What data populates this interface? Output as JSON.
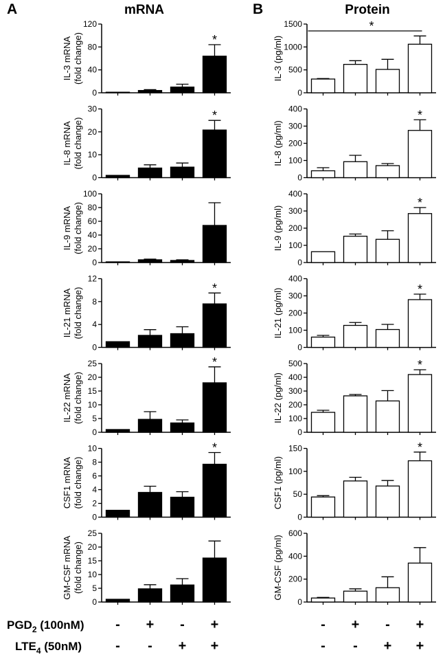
{
  "panel_letters": {
    "a": "A",
    "b": "B"
  },
  "column_titles": {
    "mrna": "mRNA",
    "protein": "Protein"
  },
  "conditions": {
    "pgd2": {
      "name": "PGD",
      "subscript": "2",
      "dose": " (100nM)",
      "signs": [
        "-",
        "+",
        "-",
        "+"
      ]
    },
    "lte4": {
      "name": "LTE",
      "subscript": "4",
      "dose": " (50nM)",
      "signs": [
        "-",
        "-",
        "+",
        "+"
      ]
    }
  },
  "colors": {
    "mrna_bar": "#000000",
    "protein_bar": "#ffffff",
    "axis": "#000000"
  },
  "chart_data": [
    {
      "type": "bar",
      "column": "mRNA",
      "ylabel": [
        "IL-3 mRNA",
        "(fold change)"
      ],
      "ylim": [
        0,
        120
      ],
      "yticks": [
        0,
        40,
        80,
        120
      ],
      "categories": [
        "1",
        "2",
        "3",
        "4"
      ],
      "values": [
        1,
        4,
        10,
        64
      ],
      "errors": [
        0,
        1.5,
        5,
        20
      ],
      "significance": [
        {
          "label": "*",
          "bar": 3
        }
      ]
    },
    {
      "type": "bar",
      "column": "mRNA",
      "ylabel": [
        "IL-8 mRNA",
        "(fold change)"
      ],
      "ylim": [
        0,
        30
      ],
      "yticks": [
        0,
        10,
        20,
        30
      ],
      "categories": [
        "1",
        "2",
        "3",
        "4"
      ],
      "values": [
        1,
        4.2,
        4.6,
        20.8
      ],
      "errors": [
        0,
        1.4,
        1.8,
        4.2
      ],
      "significance": [
        {
          "label": "*",
          "bar": 3
        }
      ]
    },
    {
      "type": "bar",
      "column": "mRNA",
      "ylabel": [
        "IL-9 mRNA",
        "(fold change)"
      ],
      "ylim": [
        0,
        100
      ],
      "yticks": [
        0,
        20,
        40,
        60,
        80,
        100
      ],
      "categories": [
        "1",
        "2",
        "3",
        "4"
      ],
      "values": [
        1,
        4,
        3,
        54
      ],
      "errors": [
        0,
        1,
        1,
        33
      ],
      "significance": []
    },
    {
      "type": "bar",
      "column": "mRNA",
      "ylabel": [
        "IL-21 mRNA",
        "(fold change)"
      ],
      "ylim": [
        0,
        12
      ],
      "yticks": [
        0,
        4,
        8,
        12
      ],
      "categories": [
        "1",
        "2",
        "3",
        "4"
      ],
      "values": [
        1,
        2.1,
        2.4,
        7.6
      ],
      "errors": [
        0,
        1,
        1.2,
        1.9
      ],
      "significance": [
        {
          "label": "*",
          "bar": 3
        }
      ]
    },
    {
      "type": "bar",
      "column": "mRNA",
      "ylabel": [
        "IL-22 mRNA",
        "(fold change)"
      ],
      "ylim": [
        0,
        25
      ],
      "yticks": [
        0,
        5,
        10,
        15,
        20,
        25
      ],
      "categories": [
        "1",
        "2",
        "3",
        "4"
      ],
      "values": [
        1,
        4.7,
        3.4,
        18
      ],
      "errors": [
        0,
        2.8,
        1.1,
        5.8
      ],
      "significance": [
        {
          "label": "*",
          "bar": 3
        }
      ]
    },
    {
      "type": "bar",
      "column": "mRNA",
      "ylabel": [
        "CSF1 mRNA",
        "(fold change)"
      ],
      "ylim": [
        0,
        10
      ],
      "yticks": [
        0,
        2,
        4,
        6,
        8,
        10
      ],
      "categories": [
        "1",
        "2",
        "3",
        "4"
      ],
      "values": [
        1,
        3.6,
        2.9,
        7.7
      ],
      "errors": [
        0,
        0.9,
        0.8,
        1.7
      ],
      "significance": [
        {
          "label": "*",
          "bar": 3
        }
      ]
    },
    {
      "type": "bar",
      "column": "mRNA",
      "ylabel": [
        "GM-CSF mRNA",
        "(fold change)"
      ],
      "ylim": [
        0,
        25
      ],
      "yticks": [
        0,
        5,
        10,
        15,
        20,
        25
      ],
      "categories": [
        "1",
        "2",
        "3",
        "4"
      ],
      "values": [
        1,
        4.8,
        6.2,
        16
      ],
      "errors": [
        0,
        1.5,
        2.3,
        6.2
      ],
      "significance": []
    },
    {
      "type": "bar",
      "column": "Protein",
      "ylabel": [
        "IL-3 (pg/ml)"
      ],
      "ylim": [
        0,
        1500
      ],
      "yticks": [
        0,
        500,
        1000,
        1500
      ],
      "categories": [
        "1",
        "2",
        "3",
        "4"
      ],
      "values": [
        300,
        620,
        510,
        1060
      ],
      "errors": [
        10,
        80,
        220,
        180
      ],
      "significance": [
        {
          "label": "*",
          "from": 0,
          "to": 3,
          "y": 1350
        }
      ]
    },
    {
      "type": "bar",
      "column": "Protein",
      "ylabel": [
        "IL-8 (pg/ml)"
      ],
      "ylim": [
        0,
        400
      ],
      "yticks": [
        0,
        100,
        200,
        300,
        400
      ],
      "categories": [
        "1",
        "2",
        "3",
        "4"
      ],
      "values": [
        40,
        93,
        70,
        275
      ],
      "errors": [
        18,
        37,
        12,
        62
      ],
      "significance": [
        {
          "label": "*",
          "bar": 3
        }
      ]
    },
    {
      "type": "bar",
      "column": "Protein",
      "ylabel": [
        "IL-9 (pg/ml)"
      ],
      "ylim": [
        0,
        400
      ],
      "yticks": [
        0,
        100,
        200,
        300,
        400
      ],
      "categories": [
        "1",
        "2",
        "3",
        "4"
      ],
      "values": [
        63,
        153,
        135,
        285
      ],
      "errors": [
        0,
        13,
        50,
        35
      ],
      "significance": [
        {
          "label": "*",
          "bar": 3
        }
      ]
    },
    {
      "type": "bar",
      "column": "Protein",
      "ylabel": [
        "IL-21 (pg/ml)"
      ],
      "ylim": [
        0,
        400
      ],
      "yticks": [
        0,
        100,
        200,
        300,
        400
      ],
      "categories": [
        "1",
        "2",
        "3",
        "4"
      ],
      "values": [
        60,
        128,
        104,
        278
      ],
      "errors": [
        10,
        17,
        30,
        32
      ],
      "significance": [
        {
          "label": "*",
          "bar": 3
        }
      ]
    },
    {
      "type": "bar",
      "column": "Protein",
      "ylabel": [
        "IL-22 (pg/ml)"
      ],
      "ylim": [
        0,
        500
      ],
      "yticks": [
        0,
        100,
        200,
        300,
        400,
        500
      ],
      "categories": [
        "1",
        "2",
        "3",
        "4"
      ],
      "values": [
        145,
        265,
        228,
        420
      ],
      "errors": [
        15,
        10,
        75,
        35
      ],
      "significance": [
        {
          "label": "*",
          "bar": 3
        }
      ]
    },
    {
      "type": "bar",
      "column": "Protein",
      "ylabel": [
        "CSF1 (pg/ml)"
      ],
      "ylim": [
        0,
        150
      ],
      "yticks": [
        0,
        50,
        100,
        150
      ],
      "categories": [
        "1",
        "2",
        "3",
        "4"
      ],
      "values": [
        44,
        79,
        68,
        123
      ],
      "errors": [
        3,
        8,
        12,
        19
      ],
      "significance": [
        {
          "label": "*",
          "bar": 3
        }
      ]
    },
    {
      "type": "bar",
      "column": "Protein",
      "ylabel": [
        "GM-CSF (pg/ml)"
      ],
      "ylim": [
        0,
        600
      ],
      "yticks": [
        0,
        200,
        400,
        600
      ],
      "categories": [
        "1",
        "2",
        "3",
        "4"
      ],
      "values": [
        35,
        95,
        125,
        340
      ],
      "errors": [
        5,
        20,
        95,
        135
      ],
      "significance": []
    }
  ]
}
